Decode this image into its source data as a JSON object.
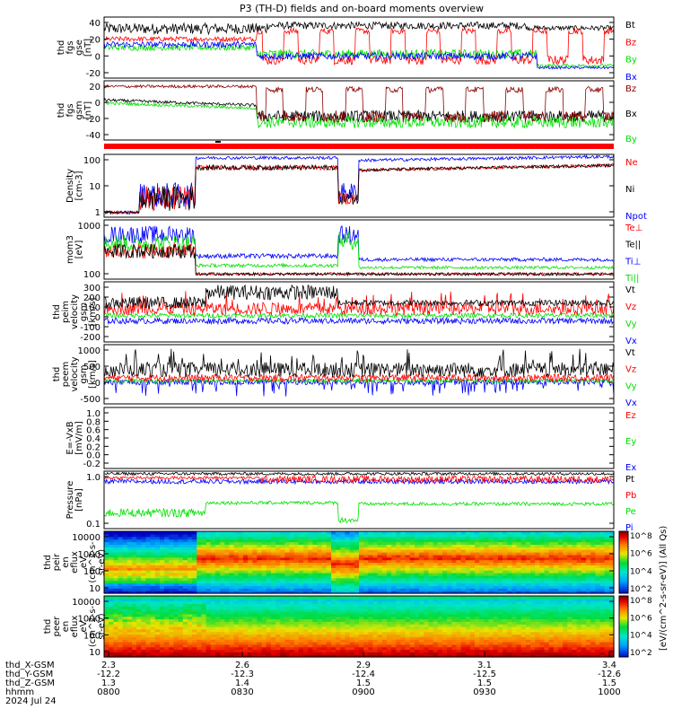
{
  "title": "P3 (TH-D) fields and on-board moments overview",
  "colors": {
    "black": "#000000",
    "red": "#ff0000",
    "green": "#00e000",
    "blue": "#0000ff",
    "darkred": "#8b0000"
  },
  "chart_data": [
    {
      "panel": "fgs_gse",
      "type": "line",
      "ylabel": [
        "thd",
        "fgs",
        "gse",
        "[nT]"
      ],
      "yticks": [
        "40",
        "20",
        "0",
        "-20"
      ],
      "ylim": [
        -30,
        45
      ],
      "legend": [
        {
          "name": "Bt",
          "color": "black"
        },
        {
          "name": "Bz",
          "color": "red"
        },
        {
          "name": "By",
          "color": "green"
        },
        {
          "name": "Bx",
          "color": "blue"
        }
      ]
    },
    {
      "panel": "fgs_gsm",
      "type": "line",
      "ylabel": [
        "thd",
        "fgs",
        "gsm",
        "[nT]"
      ],
      "yticks": [
        "20",
        "0",
        "-20",
        "-40"
      ],
      "ylim": [
        -55,
        25
      ],
      "legend": [
        {
          "name": "Bz",
          "color": "darkred"
        },
        {
          "name": "Bx",
          "color": "black"
        },
        {
          "name": "By",
          "color": "green"
        }
      ]
    },
    {
      "panel": "density",
      "type": "line",
      "ylabel": [
        "Density",
        "[cm-3]"
      ],
      "yticks": [
        "100",
        "10",
        "1"
      ],
      "log": true,
      "legend": [
        {
          "name": "Ne",
          "color": "red"
        },
        {
          "name": "Ni",
          "color": "black"
        },
        {
          "name": "Npot",
          "color": "blue"
        }
      ]
    },
    {
      "panel": "temperature",
      "type": "line",
      "ylabel": [
        "mom3",
        "[eV]"
      ],
      "yticks": [
        "1000",
        "100"
      ],
      "log": true,
      "legend": [
        {
          "name": "Te⊥",
          "color": "red"
        },
        {
          "name": "Te||",
          "color": "black"
        },
        {
          "name": "Ti⊥",
          "color": "blue"
        },
        {
          "name": "Ti||",
          "color": "green"
        }
      ]
    },
    {
      "panel": "peim_velocity",
      "type": "line",
      "ylabel": [
        "thd",
        "peim",
        "velocity",
        "gsm",
        "[km/s]"
      ],
      "yticks": [
        "300",
        "200",
        "100",
        "0",
        "-100",
        "-200"
      ],
      "ylim": [
        -220,
        380
      ],
      "legend": [
        {
          "name": "Vt",
          "color": "black"
        },
        {
          "name": "Vz",
          "color": "red"
        },
        {
          "name": "Vy",
          "color": "green"
        },
        {
          "name": "Vx",
          "color": "blue"
        }
      ]
    },
    {
      "panel": "peem_velocity",
      "type": "line",
      "ylabel": [
        "thd",
        "peem",
        "velocity",
        "gsm",
        "[km/s]"
      ],
      "yticks": [
        "1000",
        "500",
        "0",
        "-500"
      ],
      "ylim": [
        -900,
        1200
      ],
      "legend": [
        {
          "name": "Vt",
          "color": "black"
        },
        {
          "name": "Vz",
          "color": "red"
        },
        {
          "name": "Vy",
          "color": "green"
        },
        {
          "name": "Vx",
          "color": "blue"
        }
      ]
    },
    {
      "panel": "efield",
      "type": "line",
      "ylabel": [
        "E=-VxB",
        "[mV/m]"
      ],
      "yticks": [
        "1.0",
        "0.8",
        "0.6",
        "0.4",
        "0.2",
        "0.0",
        "-0.2"
      ],
      "ylim": [
        -0.2,
        1.0
      ],
      "legend": [
        {
          "name": "Ez",
          "color": "red"
        },
        {
          "name": "Ey",
          "color": "green"
        },
        {
          "name": "Ex",
          "color": "blue"
        }
      ]
    },
    {
      "panel": "pressure",
      "type": "line",
      "ylabel": [
        "Pressure",
        "[nPa]"
      ],
      "yticks": [
        "1.0",
        "0.1"
      ],
      "log": true,
      "legend": [
        {
          "name": "Pt",
          "color": "black"
        },
        {
          "name": "Pb",
          "color": "red"
        },
        {
          "name": "Pe",
          "color": "green"
        },
        {
          "name": "Pi",
          "color": "blue"
        }
      ]
    },
    {
      "panel": "peir_en_eflux",
      "type": "heatmap",
      "ylabel": [
        "thd",
        "peir",
        "en",
        "eflux",
        "eV",
        "(cm^2-s-",
        "sr-eV)"
      ],
      "yticks": [
        "10000",
        "1000",
        "100",
        "10"
      ],
      "log": true
    },
    {
      "panel": "peer_en_eflux",
      "type": "heatmap",
      "ylabel": [
        "thd",
        "peer",
        "en",
        "eflux",
        "eV",
        "(cm^2-s-",
        "sr-eV)"
      ],
      "yticks": [
        "10000",
        "1000",
        "100",
        "10"
      ],
      "log": true
    }
  ],
  "colorbar": {
    "label": "[eV/(cm^2-s-sr-eV)] (All Qs)",
    "ticks_top": [
      "10^8",
      "10^6",
      "10^4",
      "10^2"
    ],
    "ticks_bottom": [
      "10^8",
      "10^6",
      "10^4",
      "10^2"
    ]
  },
  "xaxis": {
    "rows": [
      {
        "label": "thd_X-GSM",
        "values": [
          "2.3",
          "2.6",
          "2.9",
          "3.1",
          "3.4"
        ]
      },
      {
        "label": "thd_Y-GSM",
        "values": [
          "-12.2",
          "-12.3",
          "-12.4",
          "-12.5",
          "-12.6"
        ]
      },
      {
        "label": "thd_Z-GSM",
        "values": [
          "1.3",
          "1.4",
          "1.5",
          "1.5",
          "1.5"
        ]
      },
      {
        "label": "hhmm",
        "values": [
          "0800",
          "0830",
          "0900",
          "0930",
          "1000"
        ]
      }
    ],
    "date": "2024 Jul 24"
  }
}
